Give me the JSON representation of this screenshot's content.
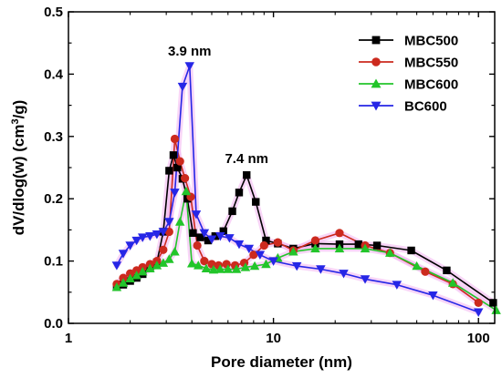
{
  "chart_data": {
    "type": "line",
    "xlabel": "Pore diameter (nm)",
    "ylabel_main": "dV/dlog(w) (cm",
    "ylabel_sup": "3",
    "ylabel_end": "/g)",
    "xscale": "log",
    "xlim": [
      1,
      120
    ],
    "ylim": [
      0,
      0.5
    ],
    "x_ticks": [
      {
        "value": 1,
        "label": "1"
      },
      {
        "value": 10,
        "label": "10"
      },
      {
        "value": 100,
        "label": "100"
      }
    ],
    "y_ticks": [
      {
        "value": 0.0,
        "label": "0.0"
      },
      {
        "value": 0.1,
        "label": "0.1"
      },
      {
        "value": 0.2,
        "label": "0.2"
      },
      {
        "value": 0.3,
        "label": "0.3"
      },
      {
        "value": 0.4,
        "label": "0.4"
      },
      {
        "value": 0.5,
        "label": "0.5"
      }
    ],
    "legend_position": "top-right",
    "annotations": [
      {
        "text": "3.9 nm",
        "x": 3.9,
        "y": 0.43
      },
      {
        "text": "7.4 nm",
        "x": 7.4,
        "y": 0.257
      }
    ],
    "series": [
      {
        "name": "MBC500",
        "color": "#000000",
        "marker": "square",
        "x": [
          1.72,
          1.85,
          2.0,
          2.15,
          2.3,
          2.5,
          2.7,
          2.9,
          3.1,
          3.25,
          3.4,
          3.6,
          3.8,
          4.05,
          4.4,
          4.8,
          5.2,
          5.7,
          6.3,
          6.8,
          7.4,
          8.2,
          9.2,
          10.5,
          12.5,
          16.0,
          21.0,
          26.0,
          32.0,
          47.0,
          70.0,
          118.0
        ],
        "y": [
          0.058,
          0.062,
          0.068,
          0.073,
          0.079,
          0.088,
          0.098,
          0.147,
          0.245,
          0.27,
          0.25,
          0.232,
          0.2,
          0.145,
          0.138,
          0.133,
          0.14,
          0.148,
          0.18,
          0.21,
          0.238,
          0.195,
          0.133,
          0.128,
          0.12,
          0.128,
          0.127,
          0.127,
          0.125,
          0.117,
          0.085,
          0.033
        ]
      },
      {
        "name": "MBC550",
        "color": "#cc2a1e",
        "marker": "circle",
        "x": [
          1.72,
          1.85,
          2.0,
          2.15,
          2.3,
          2.5,
          2.7,
          2.9,
          3.1,
          3.3,
          3.5,
          3.7,
          3.95,
          4.25,
          4.6,
          5.0,
          5.4,
          5.9,
          6.5,
          7.2,
          8.0,
          9.0,
          10.5,
          12.5,
          16.0,
          21.0,
          28.0,
          37.0,
          55.0,
          75.0,
          100.0
        ],
        "y": [
          0.063,
          0.073,
          0.08,
          0.085,
          0.09,
          0.095,
          0.1,
          0.118,
          0.147,
          0.296,
          0.26,
          0.233,
          0.203,
          0.125,
          0.1,
          0.095,
          0.093,
          0.095,
          0.093,
          0.097,
          0.11,
          0.125,
          0.13,
          0.117,
          0.133,
          0.145,
          0.125,
          0.113,
          0.083,
          0.063,
          0.033
        ]
      },
      {
        "name": "MBC600",
        "color": "#22c52a",
        "marker": "triangle-up",
        "x": [
          1.72,
          1.85,
          2.0,
          2.15,
          2.3,
          2.5,
          2.7,
          2.9,
          3.1,
          3.3,
          3.5,
          3.75,
          4.0,
          4.3,
          4.7,
          5.1,
          5.5,
          6.0,
          6.6,
          7.3,
          8.1,
          9.2,
          10.5,
          12.5,
          16.0,
          21.0,
          28.0,
          37.0,
          50.0,
          75.0,
          122.0
        ],
        "y": [
          0.058,
          0.065,
          0.072,
          0.077,
          0.083,
          0.088,
          0.093,
          0.097,
          0.103,
          0.115,
          0.163,
          0.212,
          0.096,
          0.093,
          0.088,
          0.086,
          0.087,
          0.087,
          0.087,
          0.09,
          0.092,
          0.095,
          0.105,
          0.115,
          0.12,
          0.12,
          0.12,
          0.113,
          0.092,
          0.065,
          0.021
        ]
      },
      {
        "name": "BC600",
        "color": "#2626e6",
        "marker": "triangle-down",
        "x": [
          1.72,
          1.85,
          2.0,
          2.15,
          2.3,
          2.5,
          2.7,
          2.9,
          3.1,
          3.3,
          3.6,
          3.9,
          4.2,
          4.6,
          5.0,
          5.5,
          6.1,
          6.8,
          7.6,
          8.6,
          10.0,
          13.0,
          17.0,
          22.0,
          28.0,
          40.0,
          60.0,
          100.0
        ],
        "y": [
          0.093,
          0.112,
          0.125,
          0.133,
          0.138,
          0.14,
          0.143,
          0.147,
          0.163,
          0.21,
          0.38,
          0.413,
          0.175,
          0.145,
          0.135,
          0.14,
          0.137,
          0.127,
          0.12,
          0.11,
          0.1,
          0.092,
          0.087,
          0.08,
          0.071,
          0.062,
          0.045,
          0.018
        ]
      }
    ]
  }
}
